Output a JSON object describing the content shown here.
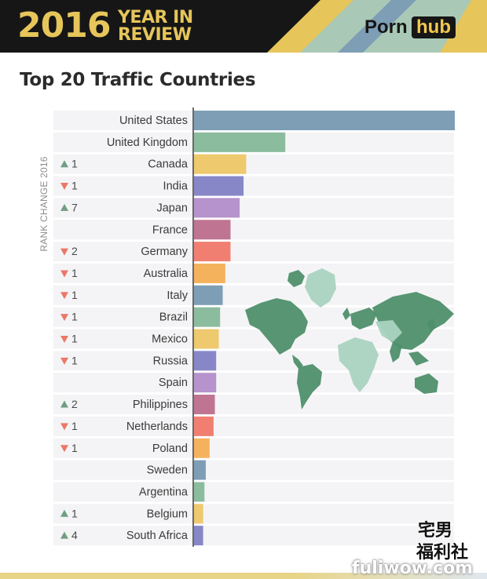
{
  "header": {
    "year": "2016",
    "year_in": "YEAR IN",
    "review": "REVIEW",
    "brand_left": "Porn",
    "brand_right": "hub"
  },
  "chart_data": {
    "type": "bar",
    "orientation": "horizontal",
    "title": "Top 20 Traffic Countries",
    "rank_change_label": "RANK CHANGE 2016",
    "xlim": [
      0,
      100
    ],
    "categories": [
      "United States",
      "United Kingdom",
      "Canada",
      "India",
      "Japan",
      "France",
      "Germany",
      "Australia",
      "Italy",
      "Brazil",
      "Mexico",
      "Russia",
      "Spain",
      "Philippines",
      "Netherlands",
      "Poland",
      "Sweden",
      "Argentina",
      "Belgium",
      "South Africa"
    ],
    "values": [
      100,
      35,
      20,
      19,
      17.5,
      14,
      14,
      12,
      11,
      10,
      9.5,
      8.5,
      8.5,
      8,
      7.5,
      6,
      4.5,
      4,
      3.5,
      3.5
    ],
    "rank_change": [
      {
        "direction": "",
        "amount": ""
      },
      {
        "direction": "",
        "amount": ""
      },
      {
        "direction": "up",
        "amount": "1"
      },
      {
        "direction": "down",
        "amount": "1"
      },
      {
        "direction": "up",
        "amount": "7"
      },
      {
        "direction": "",
        "amount": ""
      },
      {
        "direction": "down",
        "amount": "2"
      },
      {
        "direction": "down",
        "amount": "1"
      },
      {
        "direction": "down",
        "amount": "1"
      },
      {
        "direction": "down",
        "amount": "1"
      },
      {
        "direction": "down",
        "amount": "1"
      },
      {
        "direction": "down",
        "amount": "1"
      },
      {
        "direction": "",
        "amount": ""
      },
      {
        "direction": "up",
        "amount": "2"
      },
      {
        "direction": "down",
        "amount": "1"
      },
      {
        "direction": "down",
        "amount": "1"
      },
      {
        "direction": "",
        "amount": ""
      },
      {
        "direction": "",
        "amount": ""
      },
      {
        "direction": "up",
        "amount": "1"
      },
      {
        "direction": "up",
        "amount": "4"
      }
    ],
    "bar_colors": [
      "#7e9eb6",
      "#8cbc9e",
      "#eec96e",
      "#8787c8",
      "#b693cc",
      "#bf7591",
      "#f07f72",
      "#f5b25d"
    ],
    "up_color": "#6f9e82",
    "down_color": "#ea7867",
    "grid": false
  },
  "watermark": {
    "line1": "宅男",
    "line2": "福利社",
    "line3": "fuliwow.com"
  }
}
